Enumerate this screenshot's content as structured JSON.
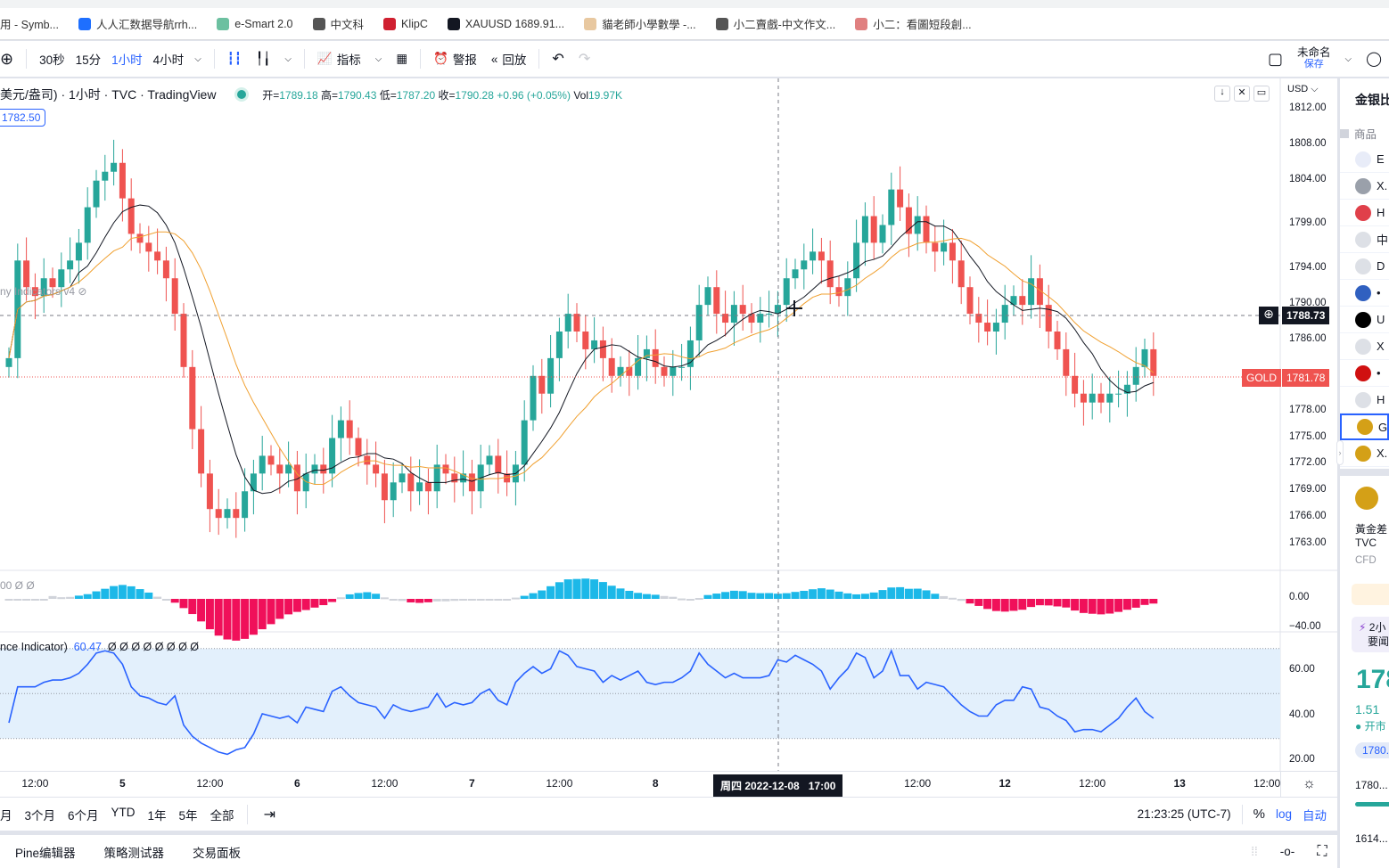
{
  "bookmarks": [
    {
      "label": "用 - Symb...",
      "color": "#ffffff"
    },
    {
      "label": "人人汇数据导航rrh...",
      "color": "#1e6fff"
    },
    {
      "label": "e-Smart 2.0",
      "color": "#6cc0a0"
    },
    {
      "label": "中文科",
      "color": "#555555"
    },
    {
      "label": "KlipC",
      "color": "#d02030"
    },
    {
      "label": "XAUUSD 1689.91...",
      "color": "#131722"
    },
    {
      "label": "貓老師小學數學 -...",
      "color": "#e8c8a0"
    },
    {
      "label": "小二賣戲-中文作文...",
      "color": "#555555"
    },
    {
      "label": "小二：看圖短段創...",
      "color": "#e08080"
    }
  ],
  "toolbar": {
    "intervals": [
      "30秒",
      "15分",
      "1小时",
      "4小时"
    ],
    "active_interval": "1小时",
    "indicators": "指标",
    "alert": "警报",
    "replay": "回放",
    "layout_name": "未命名",
    "save": "保存"
  },
  "legend": {
    "title": "美元/盎司) · 1小时 · TVC · TradingView",
    "open_label": "开=",
    "open": "1789.18",
    "high_label": "高=",
    "high": "1790.43",
    "low_label": "低=",
    "low": "1787.20",
    "close_label": "收=",
    "close": "1790.28",
    "change": "+0.96 (+0.05%)",
    "vol_label": "Vol",
    "vol": "19.97K",
    "price_tag": "1782.50",
    "indicator_hidden": "ny Indicators v4"
  },
  "price_axis": {
    "currency": "USD",
    "ticks": [
      "1812.00",
      "1808.00",
      "1804.00",
      "1799.00",
      "1794.00",
      "1790.00",
      "1786.00",
      "1778.00",
      "1775.00",
      "1772.00",
      "1769.00",
      "1766.00",
      "1763.00"
    ],
    "crosshair_price": "1788.73",
    "symbol_tag": "GOLD",
    "last_price": "1781.78"
  },
  "hist_pane": {
    "legend": "00  Ø  Ø",
    "ticks": [
      "0.00",
      "−40.00"
    ]
  },
  "rsi_pane": {
    "legend": "nce Indicator)",
    "value": "60.47",
    "extra": "Ø Ø Ø Ø Ø Ø Ø Ø",
    "ticks": [
      "60.00",
      "40.00",
      "20.00"
    ]
  },
  "x_axis": {
    "ticks": [
      {
        "label": "12:00",
        "i": 3
      },
      {
        "label": "5",
        "i": 13
      },
      {
        "label": "12:00",
        "i": 23
      },
      {
        "label": "6",
        "i": 33
      },
      {
        "label": "12:00",
        "i": 43
      },
      {
        "label": "7",
        "i": 53
      },
      {
        "label": "12:00",
        "i": 63
      },
      {
        "label": "8",
        "i": 74
      },
      {
        "label": "12:00",
        "i": 104
      },
      {
        "label": "12",
        "i": 114
      },
      {
        "label": "12:00",
        "i": 124
      },
      {
        "label": "13",
        "i": 134
      },
      {
        "label": "12:00",
        "i": 144
      }
    ],
    "crosshair_label": "周四 2022-12-08   17:00"
  },
  "range_bar": {
    "ranges": [
      "月",
      "3个月",
      "6个月",
      "YTD",
      "1年",
      "5年",
      "全部"
    ],
    "time": "21:23:25 (UTC-7)",
    "percent": "%",
    "log": "log",
    "auto": "自动"
  },
  "bottom_panel": {
    "tabs": [
      "Pine编辑器",
      "策略测试器",
      "交易面板"
    ]
  },
  "watchlist": {
    "title": "金银比",
    "header": "商品",
    "items": [
      {
        "label": "E",
        "color": "#e8ecf8"
      },
      {
        "label": "X.",
        "color": "#9aa0aa"
      },
      {
        "label": "H",
        "color": "#e0404a"
      },
      {
        "label": "中",
        "color": "#dde0e6"
      },
      {
        "label": "D",
        "color": "#dde0e6"
      },
      {
        "label": "•",
        "color": "#3060c0"
      },
      {
        "label": "U",
        "color": "#000000"
      },
      {
        "label": "X",
        "color": "#dde0e6"
      },
      {
        "label": "•",
        "color": "#d01010"
      },
      {
        "label": "H",
        "color": "#dde0e6"
      },
      {
        "label": "G",
        "color": "#d4a017"
      },
      {
        "label": "X.",
        "color": "#d4a017"
      }
    ],
    "detail": {
      "name_line": "黃金差",
      "exchange": "TVC",
      "type": "CFD",
      "news": "2小",
      "news2": "要闻",
      "price": "178",
      "change": "1.51",
      "status": "开市",
      "chip": "1780.",
      "low": "1780...",
      "high": "1614..."
    }
  },
  "colors": {
    "up": "#26a69a",
    "down": "#ef5350",
    "ma_fast": "#131722",
    "ma_slow": "#f0a030",
    "hist_up": "#1cb8e8",
    "hist_down": "#f0105a",
    "hist_neutral": "#d0d3da",
    "rsi": "#2962ff",
    "rsi_band": "#e3f0fc",
    "accent": "#2962ff"
  },
  "chart_data": {
    "type": "candlestick",
    "ylim": [
      1760,
      1813
    ],
    "close": [
      1784,
      1795,
      1792,
      1791,
      1793,
      1792,
      1794,
      1795,
      1797,
      1801,
      1804,
      1805,
      1806,
      1802,
      1798,
      1797,
      1796,
      1795,
      1793,
      1789,
      1783,
      1776,
      1771,
      1767,
      1766,
      1767,
      1766,
      1769,
      1771,
      1773,
      1772,
      1771,
      1772,
      1769,
      1771,
      1772,
      1771,
      1775,
      1777,
      1775,
      1773,
      1772,
      1771,
      1768,
      1770,
      1771,
      1769,
      1770,
      1769,
      1772,
      1771,
      1770,
      1771,
      1769,
      1772,
      1773,
      1771,
      1770,
      1772,
      1777,
      1782,
      1780,
      1784,
      1787,
      1789,
      1787,
      1785,
      1786,
      1784,
      1782,
      1783,
      1782,
      1784,
      1785,
      1783,
      1782,
      1783,
      1783,
      1786,
      1790,
      1792,
      1789,
      1788,
      1790,
      1789,
      1788,
      1789,
      1789,
      1790,
      1793,
      1794,
      1795,
      1796,
      1795,
      1792,
      1791,
      1793,
      1797,
      1800,
      1797,
      1799,
      1803,
      1801,
      1798,
      1800,
      1797,
      1796,
      1797,
      1795,
      1792,
      1789,
      1788,
      1787,
      1788,
      1790,
      1791,
      1790,
      1793,
      1790,
      1787,
      1785,
      1782,
      1780,
      1779,
      1780,
      1779,
      1780,
      1780,
      1781,
      1783,
      1785,
      1782
    ],
    "rsi": [
      37,
      53,
      53,
      53,
      55,
      56,
      56,
      57,
      59,
      63,
      68,
      69,
      68,
      63,
      53,
      49,
      48,
      46,
      45,
      49,
      36,
      31,
      28,
      26,
      24,
      23,
      25,
      26,
      32,
      41,
      40,
      39,
      40,
      37,
      44,
      43,
      42,
      51,
      53,
      49,
      46,
      45,
      44,
      39,
      45,
      43,
      42,
      43,
      44,
      50,
      44,
      46,
      45,
      46,
      50,
      52,
      47,
      45,
      55,
      59,
      62,
      59,
      61,
      69,
      67,
      62,
      61,
      60,
      55,
      58,
      56,
      58,
      60,
      55,
      54,
      55,
      55,
      57,
      60,
      68,
      63,
      60,
      57,
      59,
      57,
      57,
      57,
      58,
      65,
      64,
      67,
      65,
      63,
      60,
      52,
      57,
      61,
      68,
      66,
      57,
      60,
      69,
      58,
      58,
      52,
      55,
      54,
      53,
      49,
      45,
      42,
      40,
      40,
      45,
      47,
      47,
      53,
      52,
      44,
      43,
      40,
      38,
      33,
      34,
      34,
      33,
      36,
      39,
      44,
      48,
      42,
      39
    ],
    "rsi_levels": [
      70,
      50,
      30
    ],
    "rsi_ylim": [
      15,
      75
    ]
  }
}
